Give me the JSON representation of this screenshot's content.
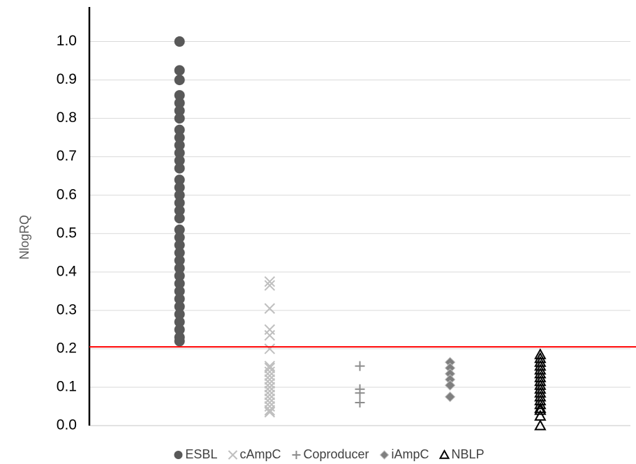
{
  "chart_data": {
    "type": "strip",
    "y_label": "NlogRQ",
    "ylim": [
      0,
      1.09
    ],
    "yticks": [
      {
        "value": 0,
        "label": "0.0"
      },
      0.1,
      0.2,
      0.3,
      0.4,
      0.5,
      0.6,
      0.7,
      0.8,
      0.9,
      {
        "value": 1,
        "label": "1.0"
      }
    ],
    "grid": true,
    "threshold": {
      "value": 0.205,
      "color": "#ff0000"
    },
    "legend": "bottom",
    "series": [
      {
        "name": "ESBL",
        "color": "#595959",
        "marker": "circle",
        "values": [
          1.0,
          0.925,
          0.9,
          0.86,
          0.84,
          0.82,
          0.8,
          0.77,
          0.75,
          0.73,
          0.71,
          0.69,
          0.67,
          0.64,
          0.62,
          0.6,
          0.58,
          0.56,
          0.54,
          0.51,
          0.49,
          0.47,
          0.45,
          0.43,
          0.41,
          0.39,
          0.37,
          0.35,
          0.33,
          0.31,
          0.29,
          0.27,
          0.25,
          0.23,
          0.22
        ]
      },
      {
        "name": "cAmpC",
        "color": "#bfbfbf",
        "marker": "x",
        "values": [
          0.375,
          0.365,
          0.305,
          0.25,
          0.235,
          0.2,
          0.155,
          0.15,
          0.14,
          0.13,
          0.12,
          0.11,
          0.1,
          0.09,
          0.08,
          0.07,
          0.06,
          0.05,
          0.04,
          0.035
        ]
      },
      {
        "name": "Coproducer",
        "color": "#8c8c8c",
        "marker": "plus",
        "values": [
          0.155,
          0.095,
          0.085,
          0.06
        ]
      },
      {
        "name": "iAmpC",
        "color": "#7f7f7f",
        "marker": "diamond",
        "values": [
          0.165,
          0.15,
          0.135,
          0.12,
          0.105,
          0.075
        ]
      },
      {
        "name": "NBLP",
        "color": "#000000",
        "marker": "triangle",
        "values": [
          0.185,
          0.175,
          0.165,
          0.155,
          0.145,
          0.135,
          0.125,
          0.115,
          0.105,
          0.095,
          0.085,
          0.075,
          0.065,
          0.055,
          0.045,
          0.04,
          0.025,
          0.0
        ]
      }
    ]
  }
}
